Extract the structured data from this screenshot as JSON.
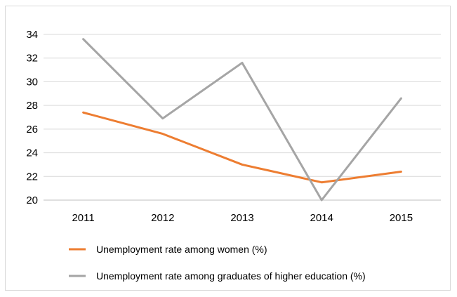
{
  "chart_data": {
    "type": "line",
    "categories": [
      "2011",
      "2012",
      "2013",
      "2014",
      "2015"
    ],
    "series": [
      {
        "name": "Unemployment rate among women (%)",
        "color": "#ed7d31",
        "values": [
          27.4,
          25.6,
          23.0,
          21.5,
          22.4
        ]
      },
      {
        "name": "Unemployment rate among graduates of higher education (%)",
        "color": "#a5a5a5",
        "values": [
          33.6,
          26.9,
          31.6,
          20.0,
          28.6
        ]
      }
    ],
    "ylim": [
      20,
      34
    ],
    "yticks": [
      20,
      22,
      24,
      26,
      28,
      30,
      32,
      34
    ],
    "grid": true,
    "legend_position": "bottom",
    "title": "",
    "xlabel": "",
    "ylabel": ""
  }
}
